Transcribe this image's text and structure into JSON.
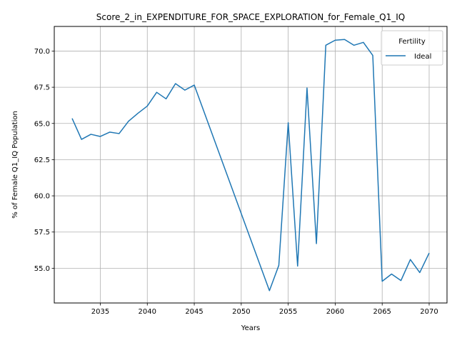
{
  "chart_data": {
    "type": "line",
    "title": "Score_2_in_EXPENDITURE_FOR_SPACE_EXPLORATION_for_Female_Q1_IQ",
    "xlabel": "Years",
    "ylabel": "% of Female Q1_IQ Population",
    "xlim": [
      2030.1,
      2071.9
    ],
    "ylim": [
      52.6,
      71.7
    ],
    "xticks": [
      2035,
      2040,
      2045,
      2050,
      2055,
      2060,
      2065,
      2070
    ],
    "yticks": [
      55.0,
      57.5,
      60.0,
      62.5,
      65.0,
      67.5,
      70.0
    ],
    "xtick_labels": [
      "2035",
      "2040",
      "2045",
      "2050",
      "2055",
      "2060",
      "2065",
      "2070"
    ],
    "ytick_labels": [
      "55.0",
      "57.5",
      "60.0",
      "62.5",
      "65.0",
      "67.5",
      "70.0"
    ],
    "grid": true,
    "legend": {
      "title": "Fertility",
      "position": "top-right"
    },
    "colors": {
      "line": "#1f77b4",
      "grid": "#b0b0b0"
    },
    "series": [
      {
        "name": "Ideal",
        "x": [
          2032,
          2033,
          2034,
          2035,
          2036,
          2037,
          2038,
          2039,
          2040,
          2041,
          2042,
          2043,
          2044,
          2045,
          2053,
          2054,
          2055,
          2056,
          2057,
          2058,
          2059,
          2060,
          2061,
          2062,
          2063,
          2064,
          2065,
          2066,
          2067,
          2068,
          2069,
          2070
        ],
        "values": [
          65.35,
          63.9,
          64.25,
          64.1,
          64.4,
          64.3,
          65.15,
          65.7,
          66.2,
          67.15,
          66.7,
          67.75,
          67.3,
          67.65,
          53.45,
          55.2,
          65.05,
          55.15,
          67.45,
          56.7,
          70.4,
          70.75,
          70.8,
          70.4,
          70.6,
          69.7,
          54.1,
          54.6,
          54.15,
          55.6,
          54.7,
          56.05
        ]
      }
    ]
  }
}
